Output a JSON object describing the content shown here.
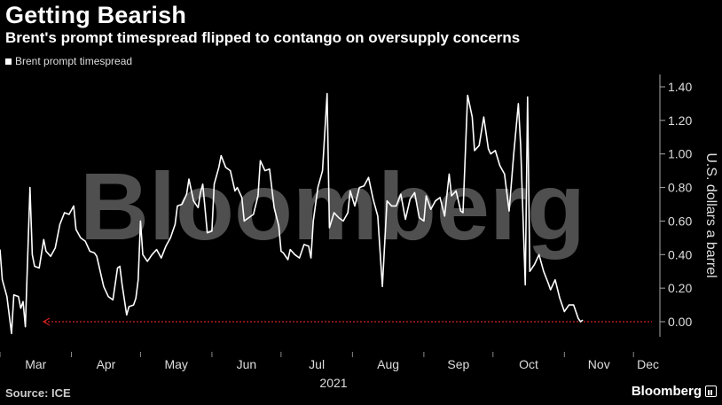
{
  "header": {
    "title": "Getting Bearish",
    "subtitle": "Brent's prompt timespread flipped to contango on oversupply concerns"
  },
  "footer": {
    "source": "Source: ICE",
    "brand": "Bloomberg"
  },
  "watermark": "Bloomberg",
  "colors": {
    "line": "#ffffff",
    "zero_line": "#d22020",
    "background": "#000000"
  },
  "chart_data": {
    "type": "line",
    "xlabel_year": "2021",
    "ylabel": "U.S. dollars a barrel",
    "ylim": [
      -0.07,
      1.45
    ],
    "y_ticks": [
      "1.40",
      "1.20",
      "1.00",
      "0.80",
      "0.60",
      "0.40",
      "0.20",
      "0.00"
    ],
    "y_tick_values": [
      1.4,
      1.2,
      1.0,
      0.8,
      0.6,
      0.4,
      0.2,
      0.0
    ],
    "x_ticks": [
      "Mar",
      "Apr",
      "May",
      "Jun",
      "Jul",
      "Aug",
      "Sep",
      "Oct",
      "Nov",
      "Dec"
    ],
    "x_tick_dates": [
      "2021-03-01",
      "2021-04-01",
      "2021-05-01",
      "2021-06-01",
      "2021-07-01",
      "2021-08-01",
      "2021-09-01",
      "2021-10-01",
      "2021-11-01",
      "2021-12-01"
    ],
    "xlim": [
      "2021-03-01",
      "2021-12-09"
    ],
    "grid": false,
    "legend_position": "top-left",
    "series": [
      {
        "name": "Brent prompt timespread",
        "points": [
          [
            "2021-03-01",
            0.43
          ],
          [
            "2021-03-02",
            0.25
          ],
          [
            "2021-03-04",
            0.15
          ],
          [
            "2021-03-06",
            -0.07
          ],
          [
            "2021-03-07",
            0.16
          ],
          [
            "2021-03-09",
            0.15
          ],
          [
            "2021-03-10",
            0.08
          ],
          [
            "2021-03-11",
            0.12
          ],
          [
            "2021-03-12",
            -0.03
          ],
          [
            "2021-03-14",
            0.8
          ],
          [
            "2021-03-15",
            0.4
          ],
          [
            "2021-03-16",
            0.33
          ],
          [
            "2021-03-18",
            0.32
          ],
          [
            "2021-03-20",
            0.49
          ],
          [
            "2021-03-21",
            0.42
          ],
          [
            "2021-03-23",
            0.39
          ],
          [
            "2021-03-25",
            0.44
          ],
          [
            "2021-03-27",
            0.58
          ],
          [
            "2021-03-29",
            0.65
          ],
          [
            "2021-03-31",
            0.64
          ],
          [
            "2021-04-02",
            0.69
          ],
          [
            "2021-04-03",
            0.55
          ],
          [
            "2021-04-05",
            0.5
          ],
          [
            "2021-04-07",
            0.48
          ],
          [
            "2021-04-09",
            0.42
          ],
          [
            "2021-04-11",
            0.41
          ],
          [
            "2021-04-12",
            0.39
          ],
          [
            "2021-04-14",
            0.27
          ],
          [
            "2021-04-15",
            0.21
          ],
          [
            "2021-04-17",
            0.15
          ],
          [
            "2021-04-19",
            0.13
          ],
          [
            "2021-04-21",
            0.32
          ],
          [
            "2021-04-22",
            0.33
          ],
          [
            "2021-04-23",
            0.22
          ],
          [
            "2021-04-25",
            0.04
          ],
          [
            "2021-04-26",
            0.09
          ],
          [
            "2021-04-28",
            0.1
          ],
          [
            "2021-04-29",
            0.14
          ],
          [
            "2021-04-30",
            0.25
          ],
          [
            "2021-05-01",
            0.6
          ],
          [
            "2021-05-02",
            0.4
          ],
          [
            "2021-05-04",
            0.36
          ],
          [
            "2021-05-06",
            0.4
          ],
          [
            "2021-05-08",
            0.43
          ],
          [
            "2021-05-10",
            0.38
          ],
          [
            "2021-05-12",
            0.45
          ],
          [
            "2021-05-14",
            0.5
          ],
          [
            "2021-05-16",
            0.58
          ],
          [
            "2021-05-17",
            0.69
          ],
          [
            "2021-05-19",
            0.7
          ],
          [
            "2021-05-21",
            0.76
          ],
          [
            "2021-05-22",
            0.85
          ],
          [
            "2021-05-24",
            0.72
          ],
          [
            "2021-05-26",
            0.68
          ],
          [
            "2021-05-27",
            0.77
          ],
          [
            "2021-05-28",
            0.82
          ],
          [
            "2021-05-30",
            0.53
          ],
          [
            "2021-06-01",
            0.54
          ],
          [
            "2021-06-02",
            0.82
          ],
          [
            "2021-06-04",
            0.92
          ],
          [
            "2021-06-05",
            0.99
          ],
          [
            "2021-06-07",
            0.92
          ],
          [
            "2021-06-09",
            0.9
          ],
          [
            "2021-06-11",
            0.78
          ],
          [
            "2021-06-12",
            0.8
          ],
          [
            "2021-06-14",
            0.74
          ],
          [
            "2021-06-15",
            0.6
          ],
          [
            "2021-06-17",
            0.62
          ],
          [
            "2021-06-19",
            0.64
          ],
          [
            "2021-06-21",
            0.75
          ],
          [
            "2021-06-22",
            0.96
          ],
          [
            "2021-06-24",
            0.9
          ],
          [
            "2021-06-26",
            0.91
          ],
          [
            "2021-06-28",
            0.68
          ],
          [
            "2021-06-30",
            0.57
          ],
          [
            "2021-07-01",
            0.42
          ],
          [
            "2021-07-02",
            0.41
          ],
          [
            "2021-07-04",
            0.37
          ],
          [
            "2021-07-05",
            0.43
          ],
          [
            "2021-07-07",
            0.4
          ],
          [
            "2021-07-09",
            0.38
          ],
          [
            "2021-07-11",
            0.46
          ],
          [
            "2021-07-13",
            0.45
          ],
          [
            "2021-07-14",
            0.38
          ],
          [
            "2021-07-15",
            0.6
          ],
          [
            "2021-07-17",
            0.8
          ],
          [
            "2021-07-19",
            0.9
          ],
          [
            "2021-07-21",
            1.36
          ],
          [
            "2021-07-22",
            0.56
          ],
          [
            "2021-07-24",
            0.65
          ],
          [
            "2021-07-26",
            0.62
          ],
          [
            "2021-07-28",
            0.6
          ],
          [
            "2021-07-30",
            0.65
          ],
          [
            "2021-07-31",
            0.78
          ],
          [
            "2021-08-02",
            0.69
          ],
          [
            "2021-08-04",
            0.8
          ],
          [
            "2021-08-06",
            0.81
          ],
          [
            "2021-08-08",
            0.86
          ],
          [
            "2021-08-10",
            0.73
          ],
          [
            "2021-08-12",
            0.63
          ],
          [
            "2021-08-14",
            0.21
          ],
          [
            "2021-08-16",
            0.72
          ],
          [
            "2021-08-18",
            0.69
          ],
          [
            "2021-08-20",
            0.69
          ],
          [
            "2021-08-22",
            0.76
          ],
          [
            "2021-08-24",
            0.61
          ],
          [
            "2021-08-26",
            0.73
          ],
          [
            "2021-08-28",
            0.77
          ],
          [
            "2021-08-30",
            0.62
          ],
          [
            "2021-09-01",
            0.6
          ],
          [
            "2021-09-02",
            0.75
          ],
          [
            "2021-09-04",
            0.67
          ],
          [
            "2021-09-06",
            0.72
          ],
          [
            "2021-09-08",
            0.74
          ],
          [
            "2021-09-10",
            0.63
          ],
          [
            "2021-09-12",
            0.88
          ],
          [
            "2021-09-13",
            0.75
          ],
          [
            "2021-09-15",
            0.78
          ],
          [
            "2021-09-17",
            0.66
          ],
          [
            "2021-09-18",
            0.65
          ],
          [
            "2021-09-20",
            1.35
          ],
          [
            "2021-09-22",
            1.22
          ],
          [
            "2021-09-23",
            1.02
          ],
          [
            "2021-09-25",
            1.05
          ],
          [
            "2021-09-27",
            1.22
          ],
          [
            "2021-09-29",
            1.03
          ],
          [
            "2021-09-30",
            1.0
          ],
          [
            "2021-10-02",
            1.02
          ],
          [
            "2021-10-04",
            0.93
          ],
          [
            "2021-10-06",
            0.88
          ],
          [
            "2021-10-08",
            0.66
          ],
          [
            "2021-10-10",
            1.0
          ],
          [
            "2021-10-12",
            1.3
          ],
          [
            "2021-10-13",
            1.05
          ],
          [
            "2021-10-15",
            0.22
          ],
          [
            "2021-10-16",
            1.34
          ],
          [
            "2021-10-17",
            0.3
          ],
          [
            "2021-10-19",
            0.34
          ],
          [
            "2021-10-21",
            0.4
          ],
          [
            "2021-10-23",
            0.3
          ],
          [
            "2021-10-25",
            0.23
          ],
          [
            "2021-10-26",
            0.19
          ],
          [
            "2021-10-28",
            0.25
          ],
          [
            "2021-10-30",
            0.14
          ],
          [
            "2021-11-01",
            0.06
          ],
          [
            "2021-11-03",
            0.1
          ],
          [
            "2021-11-05",
            0.1
          ],
          [
            "2021-11-07",
            0.02
          ],
          [
            "2021-11-08",
            0.0
          ],
          [
            "2021-11-09",
            0.01
          ]
        ]
      }
    ],
    "reference_line": {
      "y": 0.0,
      "style": "dotted",
      "arrow": "left"
    }
  }
}
